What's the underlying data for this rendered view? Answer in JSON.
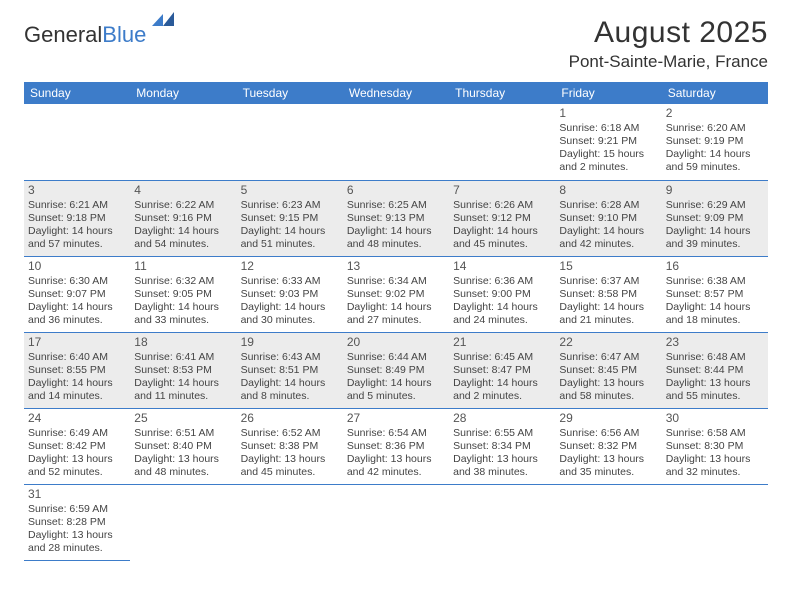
{
  "brand": {
    "word1": "General",
    "word2": "Blue"
  },
  "title": "August 2025",
  "location": "Pont-Sainte-Marie, France",
  "colors": {
    "accent": "#3d7cc9",
    "shade": "#ececec",
    "text": "#3a3a3a",
    "background": "#ffffff"
  },
  "typography": {
    "title_fontsize": 30,
    "location_fontsize": 17,
    "header_fontsize": 12,
    "cell_fontsize": 10.5,
    "daynum_fontsize": 12,
    "font_family": "Arial"
  },
  "calendar": {
    "type": "table",
    "columns": [
      "Sunday",
      "Monday",
      "Tuesday",
      "Wednesday",
      "Thursday",
      "Friday",
      "Saturday"
    ],
    "weeks": [
      [
        null,
        null,
        null,
        null,
        null,
        {
          "day": "1",
          "sunrise": "Sunrise: 6:18 AM",
          "sunset": "Sunset: 9:21 PM",
          "daylight": "Daylight: 15 hours and 2 minutes."
        },
        {
          "day": "2",
          "sunrise": "Sunrise: 6:20 AM",
          "sunset": "Sunset: 9:19 PM",
          "daylight": "Daylight: 14 hours and 59 minutes."
        }
      ],
      [
        {
          "day": "3",
          "sunrise": "Sunrise: 6:21 AM",
          "sunset": "Sunset: 9:18 PM",
          "daylight": "Daylight: 14 hours and 57 minutes."
        },
        {
          "day": "4",
          "sunrise": "Sunrise: 6:22 AM",
          "sunset": "Sunset: 9:16 PM",
          "daylight": "Daylight: 14 hours and 54 minutes."
        },
        {
          "day": "5",
          "sunrise": "Sunrise: 6:23 AM",
          "sunset": "Sunset: 9:15 PM",
          "daylight": "Daylight: 14 hours and 51 minutes."
        },
        {
          "day": "6",
          "sunrise": "Sunrise: 6:25 AM",
          "sunset": "Sunset: 9:13 PM",
          "daylight": "Daylight: 14 hours and 48 minutes."
        },
        {
          "day": "7",
          "sunrise": "Sunrise: 6:26 AM",
          "sunset": "Sunset: 9:12 PM",
          "daylight": "Daylight: 14 hours and 45 minutes."
        },
        {
          "day": "8",
          "sunrise": "Sunrise: 6:28 AM",
          "sunset": "Sunset: 9:10 PM",
          "daylight": "Daylight: 14 hours and 42 minutes."
        },
        {
          "day": "9",
          "sunrise": "Sunrise: 6:29 AM",
          "sunset": "Sunset: 9:09 PM",
          "daylight": "Daylight: 14 hours and 39 minutes."
        }
      ],
      [
        {
          "day": "10",
          "sunrise": "Sunrise: 6:30 AM",
          "sunset": "Sunset: 9:07 PM",
          "daylight": "Daylight: 14 hours and 36 minutes."
        },
        {
          "day": "11",
          "sunrise": "Sunrise: 6:32 AM",
          "sunset": "Sunset: 9:05 PM",
          "daylight": "Daylight: 14 hours and 33 minutes."
        },
        {
          "day": "12",
          "sunrise": "Sunrise: 6:33 AM",
          "sunset": "Sunset: 9:03 PM",
          "daylight": "Daylight: 14 hours and 30 minutes."
        },
        {
          "day": "13",
          "sunrise": "Sunrise: 6:34 AM",
          "sunset": "Sunset: 9:02 PM",
          "daylight": "Daylight: 14 hours and 27 minutes."
        },
        {
          "day": "14",
          "sunrise": "Sunrise: 6:36 AM",
          "sunset": "Sunset: 9:00 PM",
          "daylight": "Daylight: 14 hours and 24 minutes."
        },
        {
          "day": "15",
          "sunrise": "Sunrise: 6:37 AM",
          "sunset": "Sunset: 8:58 PM",
          "daylight": "Daylight: 14 hours and 21 minutes."
        },
        {
          "day": "16",
          "sunrise": "Sunrise: 6:38 AM",
          "sunset": "Sunset: 8:57 PM",
          "daylight": "Daylight: 14 hours and 18 minutes."
        }
      ],
      [
        {
          "day": "17",
          "sunrise": "Sunrise: 6:40 AM",
          "sunset": "Sunset: 8:55 PM",
          "daylight": "Daylight: 14 hours and 14 minutes."
        },
        {
          "day": "18",
          "sunrise": "Sunrise: 6:41 AM",
          "sunset": "Sunset: 8:53 PM",
          "daylight": "Daylight: 14 hours and 11 minutes."
        },
        {
          "day": "19",
          "sunrise": "Sunrise: 6:43 AM",
          "sunset": "Sunset: 8:51 PM",
          "daylight": "Daylight: 14 hours and 8 minutes."
        },
        {
          "day": "20",
          "sunrise": "Sunrise: 6:44 AM",
          "sunset": "Sunset: 8:49 PM",
          "daylight": "Daylight: 14 hours and 5 minutes."
        },
        {
          "day": "21",
          "sunrise": "Sunrise: 6:45 AM",
          "sunset": "Sunset: 8:47 PM",
          "daylight": "Daylight: 14 hours and 2 minutes."
        },
        {
          "day": "22",
          "sunrise": "Sunrise: 6:47 AM",
          "sunset": "Sunset: 8:45 PM",
          "daylight": "Daylight: 13 hours and 58 minutes."
        },
        {
          "day": "23",
          "sunrise": "Sunrise: 6:48 AM",
          "sunset": "Sunset: 8:44 PM",
          "daylight": "Daylight: 13 hours and 55 minutes."
        }
      ],
      [
        {
          "day": "24",
          "sunrise": "Sunrise: 6:49 AM",
          "sunset": "Sunset: 8:42 PM",
          "daylight": "Daylight: 13 hours and 52 minutes."
        },
        {
          "day": "25",
          "sunrise": "Sunrise: 6:51 AM",
          "sunset": "Sunset: 8:40 PM",
          "daylight": "Daylight: 13 hours and 48 minutes."
        },
        {
          "day": "26",
          "sunrise": "Sunrise: 6:52 AM",
          "sunset": "Sunset: 8:38 PM",
          "daylight": "Daylight: 13 hours and 45 minutes."
        },
        {
          "day": "27",
          "sunrise": "Sunrise: 6:54 AM",
          "sunset": "Sunset: 8:36 PM",
          "daylight": "Daylight: 13 hours and 42 minutes."
        },
        {
          "day": "28",
          "sunrise": "Sunrise: 6:55 AM",
          "sunset": "Sunset: 8:34 PM",
          "daylight": "Daylight: 13 hours and 38 minutes."
        },
        {
          "day": "29",
          "sunrise": "Sunrise: 6:56 AM",
          "sunset": "Sunset: 8:32 PM",
          "daylight": "Daylight: 13 hours and 35 minutes."
        },
        {
          "day": "30",
          "sunrise": "Sunrise: 6:58 AM",
          "sunset": "Sunset: 8:30 PM",
          "daylight": "Daylight: 13 hours and 32 minutes."
        }
      ],
      [
        {
          "day": "31",
          "sunrise": "Sunrise: 6:59 AM",
          "sunset": "Sunset: 8:28 PM",
          "daylight": "Daylight: 13 hours and 28 minutes."
        },
        null,
        null,
        null,
        null,
        null,
        null
      ]
    ],
    "shade_rows": [
      1,
      3
    ]
  }
}
